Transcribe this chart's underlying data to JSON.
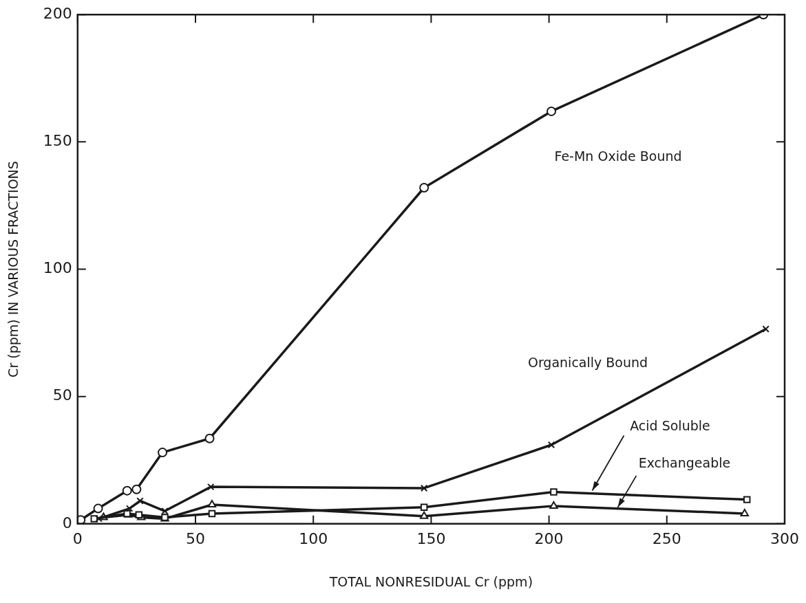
{
  "chart_data": {
    "type": "line",
    "xlabel": "TOTAL NONRESIDUAL Cr (ppm)",
    "ylabel": "Cr (ppm) IN VARIOUS FRACTIONS",
    "xlim": [
      0,
      300
    ],
    "ylim": [
      0,
      200
    ],
    "xticks": [
      0,
      50,
      100,
      150,
      200,
      250,
      300
    ],
    "yticks": [
      0,
      50,
      100,
      150,
      200
    ],
    "grid": false,
    "legend": false,
    "line_style": "solid",
    "series": [
      {
        "name": "Fe-Mn Oxide Bound",
        "color": "#1a1a1a",
        "marker": "circle",
        "x": [
          1.3,
          8.7,
          21,
          25,
          36,
          56,
          147,
          201,
          291
        ],
        "values": [
          1.5,
          6,
          13,
          13.5,
          28,
          33.5,
          132,
          162,
          200
        ]
      },
      {
        "name": "Organically Bound",
        "color": "#1a1a1a",
        "marker": "cross",
        "x": [
          9,
          22,
          26.5,
          37,
          56.5,
          147,
          201,
          292
        ],
        "values": [
          2,
          6,
          9,
          5,
          14.5,
          14,
          31,
          76.5
        ]
      },
      {
        "name": "Acid Soluble",
        "color": "#1a1a1a",
        "marker": "square",
        "x": [
          7,
          21,
          26,
          37,
          57,
          147,
          202,
          284
        ],
        "values": [
          2,
          4,
          3.5,
          2.5,
          4,
          6.5,
          12.5,
          9.5
        ]
      },
      {
        "name": "Exchangeable",
        "color": "#1a1a1a",
        "marker": "triangle",
        "x": [
          11,
          21.5,
          27,
          37,
          57,
          147,
          202,
          283
        ],
        "values": [
          2.5,
          3.5,
          2.5,
          2,
          7.5,
          3,
          7,
          4
        ]
      }
    ]
  }
}
